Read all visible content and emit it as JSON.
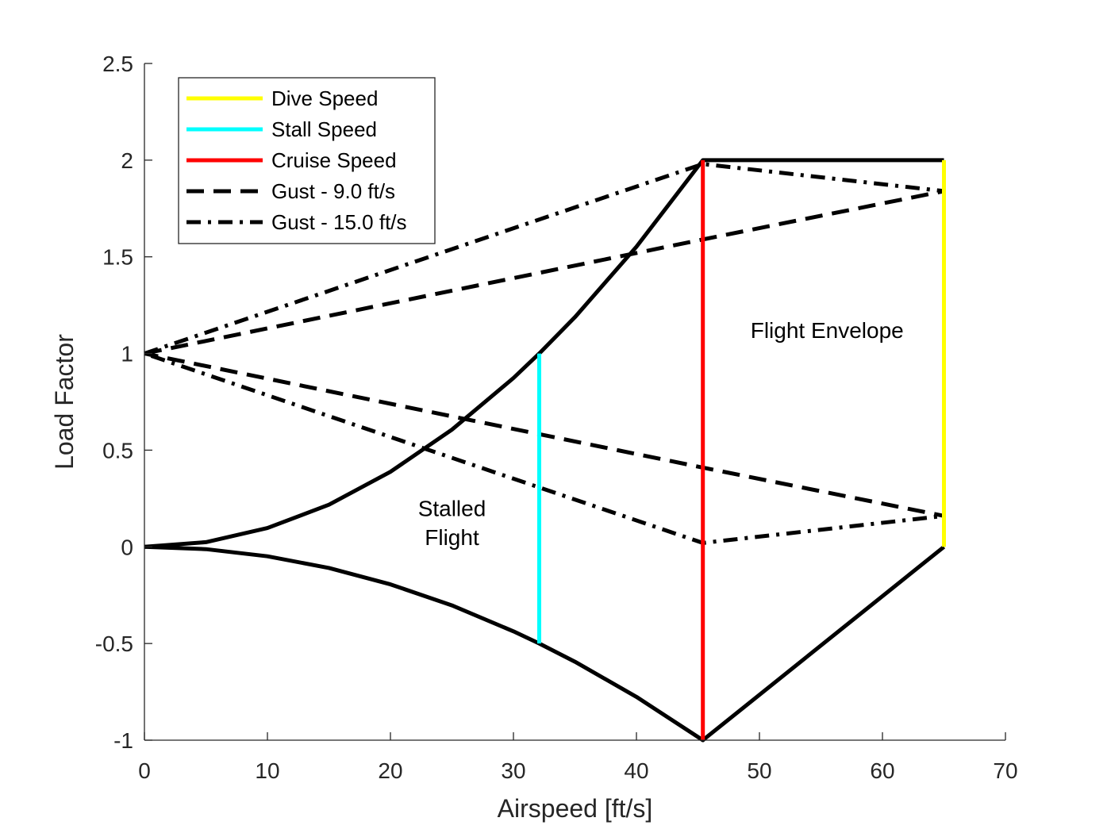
{
  "chart_data": {
    "type": "line",
    "title": "",
    "xlabel": "Airspeed [ft/s]",
    "ylabel": "Load Factor",
    "xlim": [
      0,
      70
    ],
    "ylim": [
      -1,
      2.5
    ],
    "xticks": [
      0,
      10,
      20,
      30,
      40,
      50,
      60,
      70
    ],
    "yticks": [
      -1,
      -0.5,
      0,
      0.5,
      1,
      1.5,
      2,
      2.5
    ],
    "xtick_labels": [
      "0",
      "10",
      "20",
      "30",
      "40",
      "50",
      "60",
      "70"
    ],
    "ytick_labels": [
      "-1",
      "-0.5",
      "0",
      "0.5",
      "1",
      "1.5",
      "2",
      "2.5"
    ],
    "grid": false,
    "legend_position": "top-left",
    "annotations": [
      {
        "text": "Flight Envelope",
        "x": 55.5,
        "y": 1.08
      },
      {
        "text": "Stalled",
        "x": 25,
        "y": 0.16
      },
      {
        "text": "Flight",
        "x": 25,
        "y": 0.01
      }
    ],
    "series": [
      {
        "name": "Dive Speed",
        "color": "#ffff00",
        "style": "solid",
        "legend": true,
        "x": [
          65.0,
          65.0
        ],
        "y": [
          0.0,
          2.0
        ]
      },
      {
        "name": "Stall Speed",
        "color": "#00ffff",
        "style": "solid",
        "legend": true,
        "x": [
          32.1,
          32.1
        ],
        "y": [
          -0.5,
          1.0
        ]
      },
      {
        "name": "Cruise Speed",
        "color": "#ff0000",
        "style": "solid",
        "legend": true,
        "x": [
          45.4,
          45.4
        ],
        "y": [
          -1.0,
          2.0
        ]
      },
      {
        "name": "Gust - 9.0 ft/s",
        "color": "#000000",
        "style": "dashed",
        "legend": true,
        "x": [
          0,
          45.4,
          65.0,
          65.0,
          45.4,
          0
        ],
        "y": [
          1.0,
          1.59,
          1.84,
          0.16,
          0.41,
          1.0
        ]
      },
      {
        "name": "Gust - 15.0 ft/s",
        "color": "#000000",
        "style": "dashdot",
        "legend": true,
        "x": [
          0,
          45.4,
          65.0,
          65.0,
          45.4,
          0
        ],
        "y": [
          1.0,
          1.98,
          1.84,
          0.16,
          0.02,
          1.0
        ]
      },
      {
        "color": "#000000",
        "style": "solid",
        "legend": false,
        "x": [
          0,
          5,
          10,
          15,
          20,
          25,
          30,
          32.1,
          35,
          40,
          45.4,
          65.0
        ],
        "y": [
          0,
          0.024,
          0.097,
          0.218,
          0.388,
          0.606,
          0.873,
          1.0,
          1.188,
          1.552,
          2.0,
          2.0
        ]
      },
      {
        "color": "#000000",
        "style": "solid",
        "legend": false,
        "x": [
          0,
          5,
          10,
          15,
          20,
          25,
          30,
          32.1,
          35,
          40,
          45.4,
          65.0
        ],
        "y": [
          0,
          -0.012,
          -0.049,
          -0.109,
          -0.194,
          -0.303,
          -0.437,
          -0.5,
          -0.594,
          -0.776,
          -1.0,
          0.0
        ]
      }
    ]
  }
}
